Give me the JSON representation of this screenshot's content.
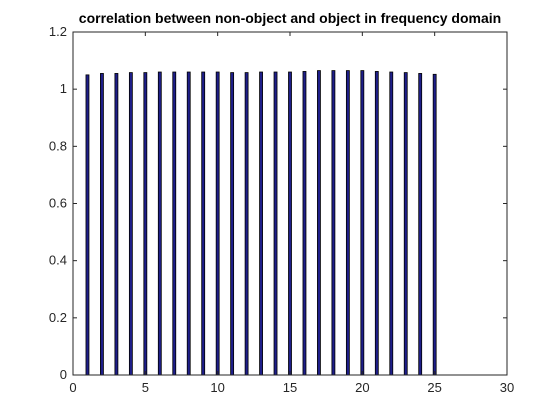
{
  "chart_data": {
    "type": "bar",
    "title": "correlation between non-object and object in frequency domain",
    "xlabel": "",
    "ylabel": "",
    "x": [
      1,
      2,
      3,
      4,
      5,
      6,
      7,
      8,
      9,
      10,
      11,
      12,
      13,
      14,
      15,
      16,
      17,
      18,
      19,
      20,
      21,
      22,
      23,
      24,
      25
    ],
    "values": [
      1.05,
      1.055,
      1.055,
      1.058,
      1.058,
      1.06,
      1.06,
      1.06,
      1.06,
      1.06,
      1.058,
      1.058,
      1.06,
      1.06,
      1.06,
      1.062,
      1.065,
      1.065,
      1.065,
      1.065,
      1.062,
      1.06,
      1.058,
      1.055,
      1.052
    ],
    "xlim": [
      0,
      30
    ],
    "ylim": [
      0,
      1.2
    ],
    "xticks": [
      0,
      5,
      10,
      15,
      20,
      25,
      30
    ],
    "xtick_labels": [
      "0",
      "5",
      "10",
      "15",
      "20",
      "25",
      "30"
    ],
    "yticks": [
      0,
      0.2,
      0.4,
      0.6,
      0.8,
      1,
      1.2
    ],
    "ytick_labels": [
      "0",
      "0.2",
      "0.4",
      "0.6",
      "0.8",
      "1",
      "1.2"
    ],
    "bar_face_color": "#1f1f8a",
    "bar_edge_color": "#000000",
    "grid": false
  }
}
